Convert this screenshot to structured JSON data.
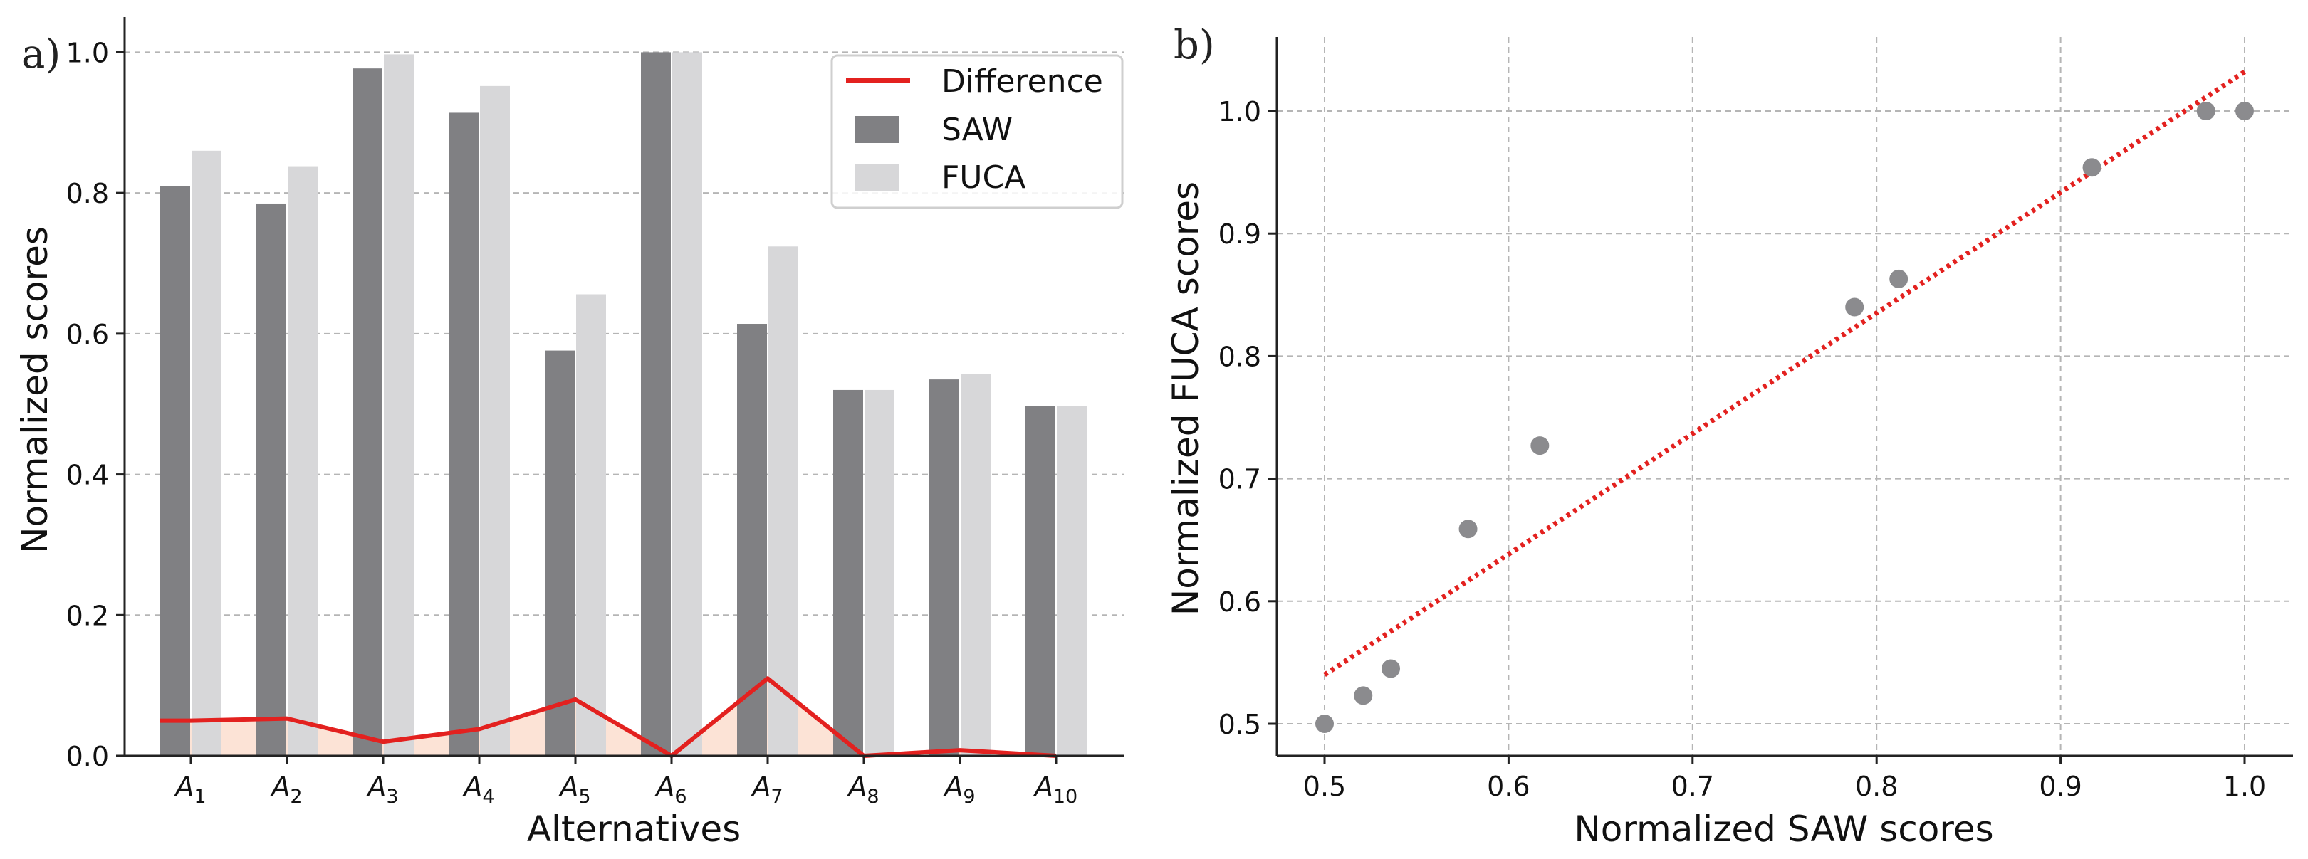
{
  "chart_data": [
    {
      "type": "bar",
      "panel_label": "a)",
      "title": "",
      "xlabel": "Alternatives",
      "ylabel": "Normalized scores",
      "ylim": [
        0,
        1.05
      ],
      "yticks": [
        "0.0",
        "0.2",
        "0.4",
        "0.6",
        "0.8",
        "1.0"
      ],
      "grid": "y-dashed",
      "categories": [
        {
          "base": "A",
          "sub": "1"
        },
        {
          "base": "A",
          "sub": "2"
        },
        {
          "base": "A",
          "sub": "3"
        },
        {
          "base": "A",
          "sub": "4"
        },
        {
          "base": "A",
          "sub": "5"
        },
        {
          "base": "A",
          "sub": "6"
        },
        {
          "base": "A",
          "sub": "7"
        },
        {
          "base": "A",
          "sub": "8"
        },
        {
          "base": "A",
          "sub": "9"
        },
        {
          "base": "A",
          "sub": "10"
        }
      ],
      "series": [
        {
          "name": "SAW",
          "type": "bar",
          "color": "#808083",
          "values": [
            0.81,
            0.785,
            0.977,
            0.914,
            0.576,
            1.0,
            0.614,
            0.52,
            0.535,
            0.497
          ]
        },
        {
          "name": "FUCA",
          "type": "bar",
          "color": "#d7d7d9",
          "values": [
            0.86,
            0.838,
            0.997,
            0.952,
            0.656,
            1.0,
            0.724,
            0.52,
            0.543,
            0.497
          ]
        },
        {
          "name": "Difference",
          "type": "line",
          "color": "#e3211f",
          "fill": "#fbd9c8",
          "values": [
            0.05,
            0.053,
            0.02,
            0.038,
            0.08,
            0.0,
            0.11,
            0.0,
            0.008,
            0.0
          ]
        }
      ],
      "legend": {
        "position": "top-right",
        "items": [
          "Difference",
          "SAW",
          "FUCA"
        ]
      }
    },
    {
      "type": "scatter",
      "panel_label": "b)",
      "title": "",
      "xlabel": "Normalized SAW scores",
      "ylabel": "Normalized FUCA scores",
      "xlim": [
        0.475,
        1.025
      ],
      "ylim": [
        0.485,
        1.063
      ],
      "xticks": [
        "0.5",
        "0.6",
        "0.7",
        "0.8",
        "0.9",
        "1.0"
      ],
      "yticks": [
        "0.5",
        "0.6",
        "0.7",
        "0.8",
        "0.9",
        "1.0"
      ],
      "grid": "both-dashed",
      "points": {
        "color": "#8b8b8e",
        "x": [
          0.5,
          0.521,
          0.536,
          0.578,
          0.617,
          0.788,
          0.812,
          0.917,
          0.979,
          1.0
        ],
        "y": [
          0.5,
          0.523,
          0.545,
          0.659,
          0.727,
          0.84,
          0.863,
          0.954,
          1.0,
          1.0
        ]
      },
      "fit_line": {
        "style": "dotted",
        "color": "#e3211f",
        "x": [
          0.5,
          1.0
        ],
        "y": [
          0.54,
          1.032
        ]
      }
    }
  ]
}
